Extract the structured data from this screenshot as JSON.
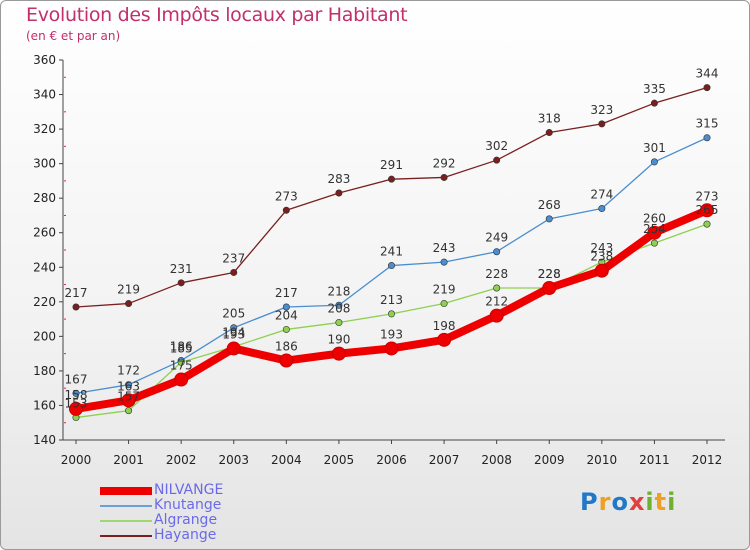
{
  "header": {
    "title": "Evolution des Impôts locaux par Habitant",
    "subtitle": "(en € et par an)"
  },
  "chart_data": {
    "type": "line",
    "title": "Evolution des Impôts locaux par Habitant",
    "subtitle": "(en € et par an)",
    "xlabel": "",
    "ylabel": "",
    "x": [
      "2000",
      "2001",
      "2002",
      "2003",
      "2004",
      "2005",
      "2006",
      "2007",
      "2008",
      "2009",
      "2010",
      "2011",
      "2012"
    ],
    "ylim": [
      140,
      360
    ],
    "yticks": [
      140,
      160,
      180,
      200,
      220,
      240,
      260,
      280,
      300,
      320,
      340,
      360
    ],
    "grid": false,
    "legend_position": "bottom-left",
    "series": [
      {
        "name": "Hayange",
        "color": "#7a1f1f",
        "values": [
          217,
          219,
          231,
          237,
          273,
          283,
          291,
          292,
          302,
          318,
          323,
          335,
          344
        ]
      },
      {
        "name": "Knutange",
        "color": "#4a8ed0",
        "values": [
          167,
          172,
          186,
          205,
          217,
          218,
          241,
          243,
          249,
          268,
          274,
          301,
          315
        ]
      },
      {
        "name": "Algrange",
        "color": "#8ed050",
        "values": [
          153,
          157,
          185,
          194,
          204,
          208,
          213,
          219,
          228,
          228,
          243,
          254,
          265
        ]
      },
      {
        "name": "NILVANGE",
        "color": "#ee0000",
        "values": [
          158,
          163,
          175,
          193,
          186,
          190,
          193,
          198,
          212,
          228,
          238,
          260,
          273
        ]
      }
    ]
  },
  "legend": {
    "items": [
      {
        "label": "NILVANGE",
        "color": "#ee0000"
      },
      {
        "label": "Knutange",
        "color": "#6aa0d8"
      },
      {
        "label": "Algrange",
        "color": "#a0d870"
      },
      {
        "label": "Hayange",
        "color": "#7a1f1f"
      }
    ]
  },
  "logo": {
    "text": "Proxiti"
  }
}
